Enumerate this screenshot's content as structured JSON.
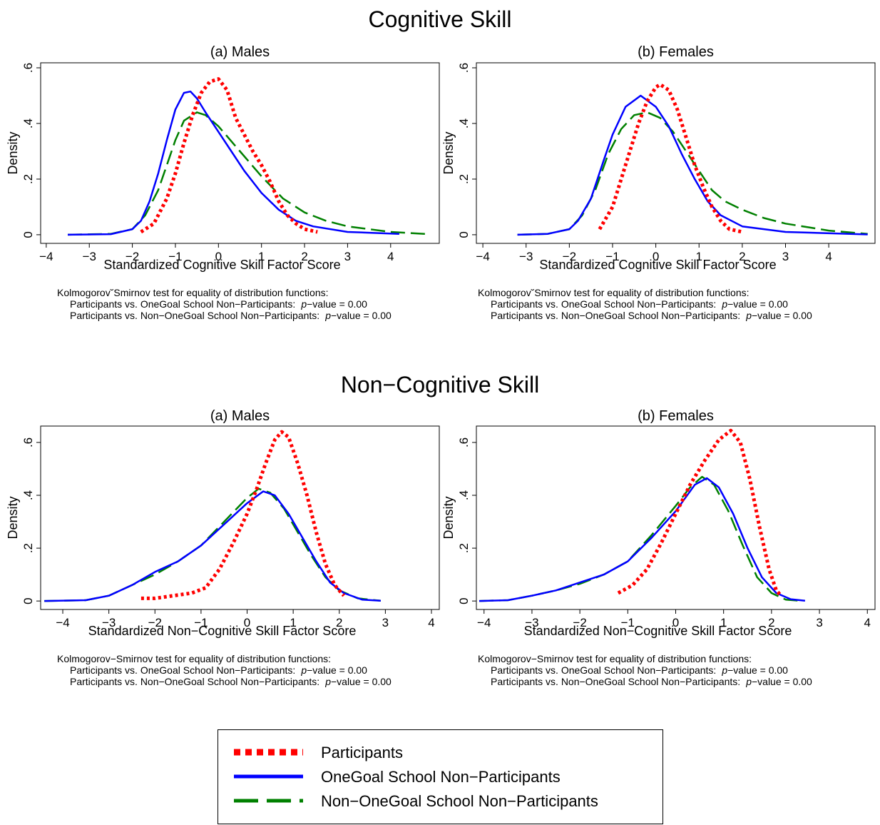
{
  "sections": [
    {
      "title": "Cognitive Skill"
    },
    {
      "title": "Non−Cognitive Skill"
    }
  ],
  "chart_data": [
    {
      "type": "line",
      "title": "(a) Males",
      "x_label": "Standardized Cognitive Skill Factor Score",
      "y_label": "Density",
      "xlim": [
        -4.13,
        5.13
      ],
      "ylim": [
        -0.031,
        0.618
      ],
      "xticks": [
        {
          "value": -4,
          "label": "−4"
        },
        {
          "value": -3,
          "label": "−3"
        },
        {
          "value": -2,
          "label": "−2"
        },
        {
          "value": -1,
          "label": "−1"
        },
        0,
        1,
        2,
        3,
        4
      ],
      "yticks": [
        0,
        {
          "value": 0.2,
          "label": ".2"
        },
        {
          "value": 0.4,
          "label": ".4"
        },
        {
          "value": 0.6,
          "label": ".6"
        }
      ],
      "series": [
        {
          "x": [
            -1.8,
            -1.5,
            -1.2,
            -1,
            -0.8,
            -0.6,
            -0.4,
            -0.2,
            0,
            0.2,
            0.4,
            0.6,
            0.8,
            1,
            1.2,
            1.4,
            1.6,
            1.8,
            2,
            2.3
          ],
          "values": [
            0.01,
            0.04,
            0.13,
            0.22,
            0.33,
            0.43,
            0.51,
            0.55,
            0.56,
            0.52,
            0.42,
            0.36,
            0.3,
            0.25,
            0.19,
            0.12,
            0.07,
            0.04,
            0.02,
            0.01
          ]
        },
        {
          "x": [
            -3.5,
            -2.5,
            -2,
            -1.8,
            -1.6,
            -1.4,
            -1.2,
            -1,
            -0.8,
            -0.65,
            -0.5,
            -0.3,
            0,
            0.3,
            0.6,
            1,
            1.4,
            1.8,
            2.2,
            3,
            4.2
          ],
          "values": [
            0,
            0.002,
            0.02,
            0.05,
            0.12,
            0.22,
            0.34,
            0.45,
            0.51,
            0.515,
            0.49,
            0.44,
            0.37,
            0.3,
            0.23,
            0.15,
            0.09,
            0.05,
            0.03,
            0.01,
            0.003
          ]
        },
        {
          "x": [
            -3.5,
            -2.5,
            -2,
            -1.7,
            -1.4,
            -1.2,
            -1,
            -0.8,
            -0.5,
            -0.3,
            0,
            0.5,
            1,
            1.5,
            2,
            2.5,
            3,
            4,
            4.9
          ],
          "values": [
            0,
            0.003,
            0.02,
            0.07,
            0.16,
            0.25,
            0.34,
            0.41,
            0.44,
            0.43,
            0.39,
            0.3,
            0.21,
            0.13,
            0.08,
            0.05,
            0.03,
            0.01,
            0.002
          ]
        }
      ]
    },
    {
      "type": "line",
      "title": "(b) Females",
      "x_label": "Standardized Cognitive Skill Factor Score",
      "y_label": "Density",
      "xlim": [
        -4.15,
        5.07
      ],
      "ylim": [
        -0.031,
        0.618
      ],
      "xticks": [
        {
          "value": -4,
          "label": "−4"
        },
        {
          "value": -3,
          "label": "−3"
        },
        {
          "value": -2,
          "label": "−2"
        },
        {
          "value": -1,
          "label": "−1"
        },
        0,
        1,
        2,
        3,
        4
      ],
      "yticks": [
        0,
        {
          "value": 0.2,
          "label": ".2"
        },
        {
          "value": 0.4,
          "label": ".4"
        },
        {
          "value": 0.6,
          "label": ".6"
        }
      ],
      "series": [
        {
          "x": [
            -1.3,
            -1,
            -0.8,
            -0.6,
            -0.4,
            -0.2,
            0,
            0.1,
            0.3,
            0.5,
            0.7,
            0.9,
            1.1,
            1.3,
            1.5,
            1.7,
            2
          ],
          "values": [
            0.02,
            0.1,
            0.2,
            0.3,
            0.4,
            0.48,
            0.53,
            0.54,
            0.52,
            0.45,
            0.35,
            0.25,
            0.17,
            0.1,
            0.05,
            0.02,
            0.01
          ]
        },
        {
          "x": [
            -3.2,
            -2.5,
            -2,
            -1.8,
            -1.5,
            -1.2,
            -1,
            -0.7,
            -0.35,
            0,
            0.3,
            0.6,
            0.9,
            1.2,
            1.5,
            2,
            3,
            4.9
          ],
          "values": [
            0,
            0.003,
            0.02,
            0.05,
            0.13,
            0.27,
            0.36,
            0.46,
            0.5,
            0.46,
            0.39,
            0.29,
            0.2,
            0.12,
            0.07,
            0.03,
            0.01,
            0.001
          ]
        },
        {
          "x": [
            -3.2,
            -2.5,
            -2,
            -1.7,
            -1.4,
            -1.1,
            -0.8,
            -0.5,
            -0.2,
            0.1,
            0.4,
            0.7,
            1,
            1.3,
            1.6,
            2,
            2.5,
            3,
            4,
            4.9
          ],
          "values": [
            0,
            0.003,
            0.02,
            0.07,
            0.16,
            0.29,
            0.38,
            0.43,
            0.44,
            0.42,
            0.37,
            0.3,
            0.23,
            0.16,
            0.12,
            0.09,
            0.06,
            0.04,
            0.015,
            0.003
          ]
        }
      ]
    },
    {
      "type": "line",
      "title": "(a) Males",
      "x_label": "Standardized Non−Cognitive Skill Factor Score",
      "y_label": "Density",
      "xlim": [
        -4.48,
        4.17
      ],
      "ylim": [
        -0.032,
        0.662
      ],
      "xticks": [
        {
          "value": -4,
          "label": "−4"
        },
        {
          "value": -3,
          "label": "−3"
        },
        {
          "value": -2,
          "label": "−2"
        },
        {
          "value": -1,
          "label": "−1"
        },
        0,
        1,
        2,
        3,
        4
      ],
      "yticks": [
        0,
        {
          "value": 0.2,
          "label": ".2"
        },
        {
          "value": 0.4,
          "label": ".4"
        },
        {
          "value": 0.6,
          "label": ".6"
        }
      ],
      "series": [
        {
          "x": [
            -2.3,
            -2,
            -1.6,
            -1.2,
            -0.9,
            -0.6,
            -0.3,
            0,
            0.2,
            0.4,
            0.6,
            0.75,
            0.9,
            1.1,
            1.3,
            1.5,
            1.7,
            1.9,
            2.1
          ],
          "values": [
            0.01,
            0.01,
            0.02,
            0.03,
            0.05,
            0.12,
            0.22,
            0.33,
            0.42,
            0.52,
            0.61,
            0.64,
            0.62,
            0.52,
            0.4,
            0.26,
            0.14,
            0.06,
            0.02
          ]
        },
        {
          "x": [
            -4.4,
            -3.5,
            -3,
            -2.5,
            -2,
            -1.5,
            -1,
            -0.5,
            0,
            0.35,
            0.6,
            0.9,
            1.2,
            1.5,
            1.8,
            2.1,
            2.5,
            2.9
          ],
          "values": [
            0,
            0.003,
            0.02,
            0.06,
            0.11,
            0.15,
            0.21,
            0.29,
            0.37,
            0.415,
            0.4,
            0.33,
            0.24,
            0.15,
            0.07,
            0.03,
            0.005,
            0.001
          ]
        },
        {
          "x": [
            -4.4,
            -3.5,
            -3,
            -2.5,
            -2,
            -1.5,
            -1,
            -0.5,
            0,
            0.25,
            0.5,
            0.8,
            1.1,
            1.4,
            1.7,
            2,
            2.4,
            2.9
          ],
          "values": [
            0,
            0.003,
            0.02,
            0.06,
            0.1,
            0.15,
            0.21,
            0.3,
            0.39,
            0.425,
            0.41,
            0.35,
            0.26,
            0.17,
            0.09,
            0.04,
            0.01,
            0.001
          ]
        }
      ]
    },
    {
      "type": "line",
      "title": "(b) Females",
      "x_label": "Standardized Non−Cognitive Skill Factor Score",
      "y_label": "Density",
      "xlim": [
        -4.16,
        4.16
      ],
      "ylim": [
        -0.032,
        0.662
      ],
      "xticks": [
        {
          "value": -4,
          "label": "−4"
        },
        {
          "value": -3,
          "label": "−3"
        },
        {
          "value": -2,
          "label": "−2"
        },
        {
          "value": -1,
          "label": "−1"
        },
        0,
        1,
        2,
        3,
        4
      ],
      "yticks": [
        0,
        {
          "value": 0.2,
          "label": ".2"
        },
        {
          "value": 0.4,
          "label": ".4"
        },
        {
          "value": 0.6,
          "label": ".6"
        }
      ],
      "series": [
        {
          "x": [
            -1.2,
            -0.9,
            -0.6,
            -0.3,
            0,
            0.3,
            0.6,
            0.9,
            1.15,
            1.35,
            1.55,
            1.75,
            1.95,
            2.1,
            2.2
          ],
          "values": [
            0.03,
            0.06,
            0.12,
            0.22,
            0.33,
            0.44,
            0.53,
            0.61,
            0.645,
            0.6,
            0.46,
            0.28,
            0.12,
            0.04,
            0.02
          ]
        },
        {
          "x": [
            -4.1,
            -3.5,
            -3,
            -2.5,
            -2,
            -1.5,
            -1,
            -0.5,
            0,
            0.4,
            0.65,
            0.9,
            1.2,
            1.5,
            1.8,
            2.1,
            2.4,
            2.7
          ],
          "values": [
            0,
            0.003,
            0.02,
            0.04,
            0.07,
            0.1,
            0.15,
            0.24,
            0.34,
            0.44,
            0.465,
            0.43,
            0.33,
            0.2,
            0.09,
            0.03,
            0.007,
            0.001
          ]
        },
        {
          "x": [
            -4.1,
            -3.5,
            -3,
            -2.5,
            -2,
            -1.5,
            -1,
            -0.5,
            0,
            0.3,
            0.55,
            0.8,
            1.1,
            1.4,
            1.7,
            2,
            2.3,
            2.6
          ],
          "values": [
            0,
            0.003,
            0.02,
            0.04,
            0.065,
            0.1,
            0.15,
            0.25,
            0.36,
            0.43,
            0.47,
            0.44,
            0.34,
            0.21,
            0.09,
            0.03,
            0.005,
            0.001
          ]
        }
      ]
    }
  ],
  "notes": [
    {
      "heading": "Kolmogorov˘Smirnov test for equality of distribution functions:",
      "lines": [
        {
          "text": "Participants vs. OneGoal School Non−Participants:",
          "p": "p",
          "rest": "−value = 0.00"
        },
        {
          "text": "Participants vs. Non−OneGoal School Non−Participants:",
          "p": "p",
          "rest": "−value = 0.00"
        }
      ]
    },
    {
      "heading": "Kolmogorov˘Smirnov test for equality of distribution functions:",
      "lines": [
        {
          "text": "Participants vs. OneGoal School Non−Participants:",
          "p": "p",
          "rest": "−value = 0.00"
        },
        {
          "text": "Participants vs. Non−OneGoal School Non−Participants:",
          "p": "p",
          "rest": "−value = 0.00"
        }
      ]
    },
    {
      "heading": "Kolmogorov−Smirnov test for equality of distribution functions:",
      "lines": [
        {
          "text": "Participants vs. OneGoal School Non−Participants:",
          "p": "p",
          "rest": "−value = 0.00"
        },
        {
          "text": "Participants vs. Non−OneGoal School Non−Participants:",
          "p": "p",
          "rest": "−value = 0.00"
        }
      ]
    },
    {
      "heading": "Kolmogorov−Smirnov test for equality of distribution functions:",
      "lines": [
        {
          "text": "Participants vs. OneGoal School Non−Participants:",
          "p": "p",
          "rest": "−value = 0.00"
        },
        {
          "text": "Participants vs. Non−OneGoal School Non−Participants:",
          "p": "p",
          "rest": "−value = 0.00"
        }
      ]
    }
  ],
  "legend": {
    "items": [
      {
        "name": "Participants",
        "color": "#ff0000",
        "style": "dotted"
      },
      {
        "name": "OneGoal School Non−Participants",
        "color": "#0000ff",
        "style": "solid"
      },
      {
        "name": "Non−OneGoal School Non−Participants",
        "color": "#008000",
        "style": "dashed"
      }
    ]
  }
}
